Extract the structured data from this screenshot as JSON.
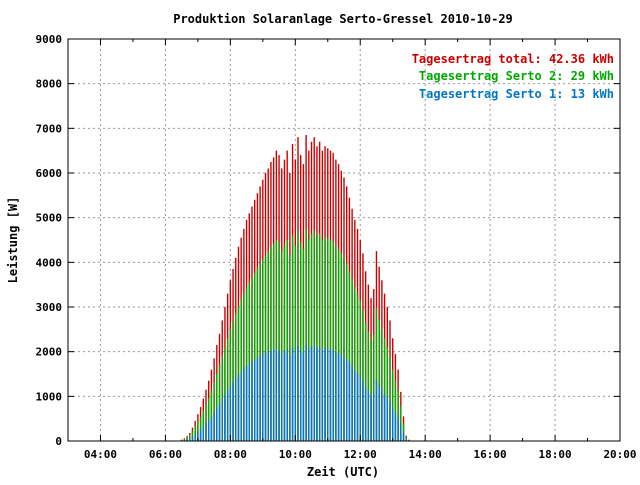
{
  "chart_data": {
    "type": "bar",
    "title": "Produktion Solaranlage Serto-Gressel 2010-10-29",
    "xlabel": "Zeit (UTC)",
    "ylabel": "Leistung [W]",
    "xlim": [
      3.0,
      20.0
    ],
    "ylim": [
      0,
      9000
    ],
    "x_ticks": [
      "04:00",
      "06:00",
      "08:00",
      "10:00",
      "12:00",
      "14:00",
      "16:00",
      "18:00",
      "20:00"
    ],
    "x_tick_hours": [
      4,
      6,
      8,
      10,
      12,
      14,
      16,
      18,
      20
    ],
    "y_ticks": [
      "0",
      "1000",
      "2000",
      "3000",
      "4000",
      "5000",
      "6000",
      "7000",
      "8000",
      "9000"
    ],
    "y_tick_values": [
      0,
      1000,
      2000,
      3000,
      4000,
      5000,
      6000,
      7000,
      8000,
      9000
    ],
    "grid": true,
    "legend_position": "top-right",
    "x_interval_minutes": 5,
    "x_start": "06:30",
    "series": [
      {
        "name": "Tagesertrag total: 42.36 kWh",
        "color": "#cc0000",
        "values": [
          30,
          60,
          110,
          180,
          300,
          450,
          600,
          760,
          950,
          1150,
          1350,
          1600,
          1850,
          2150,
          2400,
          2700,
          3000,
          3300,
          3600,
          3850,
          4100,
          4350,
          4550,
          4750,
          4950,
          5100,
          5250,
          5400,
          5550,
          5700,
          5850,
          6000,
          6100,
          6250,
          6350,
          6500,
          6400,
          6100,
          6300,
          6500,
          6000,
          6650,
          6300,
          6800,
          6400,
          6200,
          6850,
          6500,
          6700,
          6800,
          6600,
          6700,
          6500,
          6600,
          6550,
          6500,
          6450,
          6300,
          6200,
          6050,
          5900,
          5700,
          5450,
          5200,
          4950,
          4750,
          4500,
          4200,
          3800,
          3500,
          3200,
          3400,
          4250,
          3900,
          3600,
          3300,
          3000,
          2700,
          2300,
          1950,
          1600,
          1100,
          550,
          120,
          30
        ]
      },
      {
        "name": "Tagesertrag Serto 2: 29 kWh",
        "color": "#00aa00",
        "values": [
          20,
          40,
          80,
          130,
          220,
          330,
          430,
          540,
          680,
          820,
          960,
          1130,
          1300,
          1500,
          1690,
          1880,
          2080,
          2300,
          2500,
          2680,
          2850,
          3020,
          3170,
          3300,
          3440,
          3550,
          3650,
          3760,
          3860,
          3960,
          4070,
          4160,
          4240,
          4340,
          4410,
          4500,
          4440,
          4230,
          4370,
          4500,
          4160,
          4600,
          4370,
          4710,
          4440,
          4300,
          4740,
          4500,
          4640,
          4710,
          4570,
          4640,
          4500,
          4570,
          4540,
          4500,
          4470,
          4370,
          4300,
          4200,
          4100,
          3960,
          3800,
          3620,
          3450,
          3300,
          3140,
          2930,
          2650,
          2450,
          2240,
          2380,
          2970,
          2720,
          2520,
          2300,
          2100,
          1880,
          1600,
          1360,
          1120,
          780,
          380,
          90,
          20
        ]
      },
      {
        "name": "Tagesertrag Serto 1: 13 kWh",
        "color": "#0077cc",
        "values": [
          10,
          20,
          30,
          60,
          90,
          140,
          190,
          250,
          320,
          390,
          460,
          550,
          640,
          740,
          840,
          940,
          1040,
          1140,
          1230,
          1320,
          1400,
          1480,
          1550,
          1610,
          1680,
          1720,
          1770,
          1820,
          1870,
          1910,
          1950,
          1980,
          2000,
          2020,
          2040,
          2050,
          2020,
          1940,
          2000,
          2060,
          1910,
          2090,
          2000,
          2130,
          2030,
          1970,
          2150,
          2050,
          2110,
          2130,
          2080,
          2100,
          2050,
          2080,
          2070,
          2050,
          2040,
          2000,
          1970,
          1920,
          1870,
          1820,
          1750,
          1670,
          1590,
          1520,
          1450,
          1350,
          1220,
          1130,
          1030,
          1100,
          1370,
          1250,
          1160,
          1060,
          970,
          870,
          740,
          630,
          520,
          360,
          180,
          40,
          10
        ]
      }
    ]
  }
}
